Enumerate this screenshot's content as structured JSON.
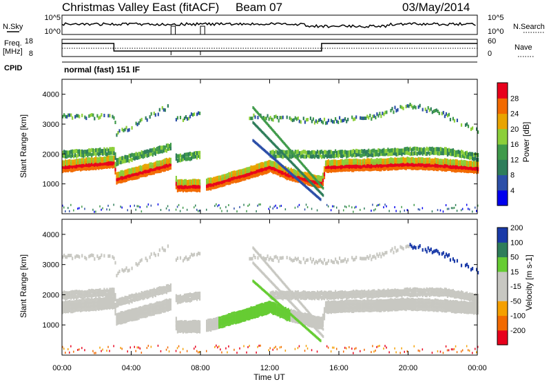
{
  "header": {
    "station": "Christmas Valley East (fitACF)",
    "beam": "Beam 07",
    "date": "03/May/2014"
  },
  "summary": {
    "nsky_label": "N.Sky",
    "nsky_ticks": [
      "10^5",
      "10^0"
    ],
    "nsearch_label": "N.Search",
    "nsearch_ticks": [
      "10^5",
      "10^0"
    ],
    "freq_label_1": "Freq.",
    "freq_label_2": "[MHz]",
    "freq_ticks": [
      "18",
      "8"
    ],
    "nave_label": "Nave",
    "nave_ticks": [
      "60",
      "0"
    ],
    "cpid_label": "CPID",
    "cpid_value": "normal (fast) 151 IF"
  },
  "colors": {
    "power": [
      "#0000ee",
      "#2c4fa8",
      "#2e7d5a",
      "#3f9a4a",
      "#8ccf3a",
      "#e9a400",
      "#f26a00",
      "#e8001c"
    ],
    "velocity": [
      "#e8001c",
      "#f26a00",
      "#f5a000",
      "#c8c8c2",
      "#c8c8c2",
      "#66cc33",
      "#2e7d5a",
      "#1a3aa8"
    ]
  },
  "chart_data": [
    {
      "type": "heatmap",
      "title": "Power",
      "ylabel": "Slant Range [km]",
      "ylim": [
        0,
        4500
      ],
      "yticks": [
        "1000",
        "2000",
        "3000",
        "4000"
      ],
      "xlim": [
        "00:00",
        "24:00"
      ],
      "colorbar_label": "Power [dB]",
      "colorbar_ticks": [
        "4",
        "8",
        "12",
        "16",
        "20",
        "24",
        "28"
      ],
      "colorbar_range": [
        0,
        32
      ],
      "bands": [
        {
          "name": "main E/F echo",
          "points": [
            [
              0,
              1600
            ],
            [
              3,
              1750
            ],
            [
              3.1,
              1200
            ],
            [
              6.3,
              1700
            ],
            [
              6.6,
              950
            ],
            [
              8,
              950
            ],
            [
              8.5,
              1000
            ],
            [
              10,
              1250
            ],
            [
              12,
              1600
            ],
            [
              13,
              1350
            ],
            [
              15,
              1050
            ],
            [
              15.2,
              1600
            ],
            [
              18,
              1650
            ],
            [
              20,
              1700
            ],
            [
              22,
              1650
            ],
            [
              24,
              1550
            ]
          ],
          "power_db": 28
        },
        {
          "name": "2F hop",
          "points": [
            [
              0,
              2000
            ],
            [
              3,
              2100
            ],
            [
              3.1,
              1750
            ],
            [
              6.3,
              2250
            ],
            [
              6.6,
              1850
            ],
            [
              8,
              2000
            ],
            [
              15.2,
              2000
            ],
            [
              18,
              2050
            ],
            [
              20,
              2100
            ],
            [
              22,
              2100
            ],
            [
              24,
              1900
            ]
          ],
          "power_db": 14
        },
        {
          "name": "upper hop",
          "points": [
            [
              0,
              3300
            ],
            [
              3,
              3300
            ],
            [
              3.1,
              2700
            ],
            [
              6.3,
              3700
            ],
            [
              6.6,
              3200
            ],
            [
              8,
              3400
            ],
            [
              15.2,
              3150
            ],
            [
              18,
              3300
            ],
            [
              20,
              3700
            ],
            [
              22,
              3400
            ],
            [
              24,
              2800
            ]
          ],
          "power_db": 12
        }
      ]
    },
    {
      "type": "heatmap",
      "title": "Velocity",
      "ylabel": "Slant Range [km]",
      "ylim": [
        0,
        4500
      ],
      "yticks": [
        "1000",
        "2000",
        "3000",
        "4000"
      ],
      "xlabel": "Time UT",
      "xticks": [
        "00:00",
        "04:00",
        "08:00",
        "12:00",
        "16:00",
        "20:00",
        "00:00"
      ],
      "colorbar_label": "Velocity [m s-1]",
      "colorbar_ticks": [
        "-200",
        "-100",
        "-50",
        "-15",
        "15",
        "50",
        "100",
        "200"
      ],
      "colorbar_range": [
        -250,
        250
      ]
    }
  ]
}
